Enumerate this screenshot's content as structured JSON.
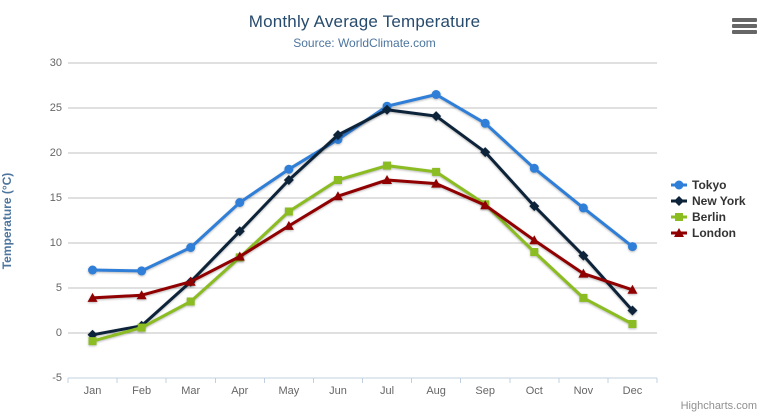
{
  "chart": {
    "title": "Monthly Average Temperature",
    "subtitle": "Source: WorldClimate.com",
    "credits": "Highcharts.com",
    "export_menu_icon": "hamburger-icon"
  },
  "chart_data": {
    "type": "line",
    "title": "Monthly Average Temperature",
    "subtitle": "Source: WorldClimate.com",
    "categories": [
      "Jan",
      "Feb",
      "Mar",
      "Apr",
      "May",
      "Jun",
      "Jul",
      "Aug",
      "Sep",
      "Oct",
      "Nov",
      "Dec"
    ],
    "series": [
      {
        "name": "Tokyo",
        "color": "#2f7ed8",
        "marker": "circle",
        "values": [
          7.0,
          6.9,
          9.5,
          14.5,
          18.2,
          21.5,
          25.2,
          26.5,
          23.3,
          18.3,
          13.9,
          9.6
        ]
      },
      {
        "name": "New York",
        "color": "#0d233a",
        "marker": "diamond",
        "values": [
          -0.2,
          0.8,
          5.7,
          11.3,
          17.0,
          22.0,
          24.8,
          24.1,
          20.1,
          14.1,
          8.6,
          2.5
        ]
      },
      {
        "name": "Berlin",
        "color": "#8bbc21",
        "marker": "square",
        "values": [
          -0.9,
          0.6,
          3.5,
          8.4,
          13.5,
          17.0,
          18.6,
          17.9,
          14.3,
          9.0,
          3.9,
          1.0
        ]
      },
      {
        "name": "London",
        "color": "#910000",
        "marker": "triangle",
        "values": [
          3.9,
          4.2,
          5.7,
          8.5,
          11.9,
          15.2,
          17.0,
          16.6,
          14.2,
          10.3,
          6.6,
          4.8
        ]
      }
    ],
    "xlabel": "",
    "ylabel": "Temperature (°C)",
    "ylim": [
      -5,
      30
    ],
    "yticks": [
      -5,
      0,
      5,
      10,
      15,
      20,
      25,
      30
    ],
    "grid": true,
    "legend_position": "right",
    "grid_color": "#c0c0c0",
    "axis_line_color": "#c0d0e0"
  }
}
